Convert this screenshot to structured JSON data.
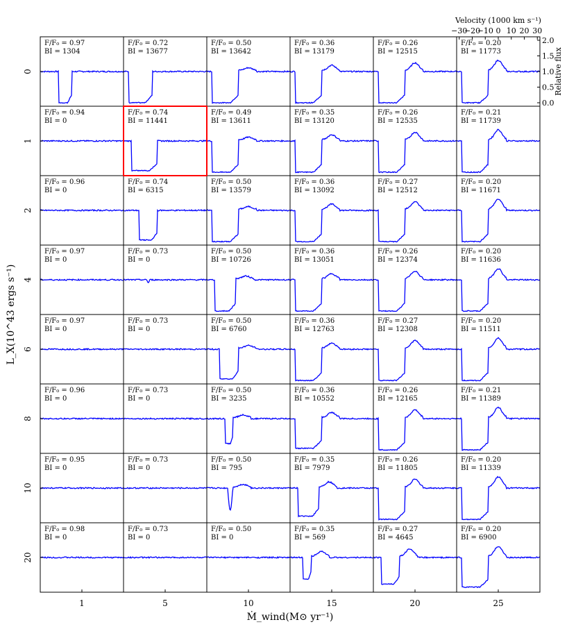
{
  "chart_data": {
    "type": "line",
    "xlabel": "Ṁ_wind(M⊙ yr⁻¹)",
    "ylabel": "L_X(10^43 ergs s⁻¹)",
    "columns": [
      "1",
      "5",
      "10",
      "15",
      "20",
      "25"
    ],
    "rows": [
      "0",
      "1",
      "2",
      "4",
      "6",
      "8",
      "10",
      "20"
    ],
    "inset_axes": {
      "top_label": "Velocity (1000 km s⁻¹)",
      "top_ticks": [
        "−30",
        "−20",
        "−10",
        "0",
        "10",
        "20",
        "30"
      ],
      "right_label": "Relative flux",
      "right_ticks": [
        "0.0",
        "0.5",
        "1.0",
        "1.5",
        "2.0"
      ]
    },
    "highlight": {
      "row": 1,
      "col": 1,
      "color": "#ff0000"
    },
    "line_color": "#0000ff",
    "flux_labels": [
      [
        "F/F₀ = 0.97",
        "F/F₀ = 0.72",
        "F/F₀ = 0.50",
        "F/F₀ = 0.36",
        "F/F₀ = 0.26",
        "F/F₀ = 0.20"
      ],
      [
        "F/F₀ = 0.94",
        "F/F₀ = 0.74",
        "F/F₀ = 0.49",
        "F/F₀ = 0.35",
        "F/F₀ = 0.26",
        "F/F₀ = 0.21"
      ],
      [
        "F/F₀ = 0.96",
        "F/F₀ = 0.74",
        "F/F₀ = 0.50",
        "F/F₀ = 0.36",
        "F/F₀ = 0.27",
        "F/F₀ = 0.20"
      ],
      [
        "F/F₀ = 0.97",
        "F/F₀ = 0.73",
        "F/F₀ = 0.50",
        "F/F₀ = 0.36",
        "F/F₀ = 0.26",
        "F/F₀ = 0.20"
      ],
      [
        "F/F₀ = 0.97",
        "F/F₀ = 0.73",
        "F/F₀ = 0.50",
        "F/F₀ = 0.36",
        "F/F₀ = 0.27",
        "F/F₀ = 0.20"
      ],
      [
        "F/F₀ = 0.96",
        "F/F₀ = 0.73",
        "F/F₀ = 0.50",
        "F/F₀ = 0.36",
        "F/F₀ = 0.26",
        "F/F₀ = 0.21"
      ],
      [
        "F/F₀ = 0.95",
        "F/F₀ = 0.73",
        "F/F₀ = 0.50",
        "F/F₀ = 0.35",
        "F/F₀ = 0.26",
        "F/F₀ = 0.20"
      ],
      [
        "F/F₀ = 0.98",
        "F/F₀ = 0.73",
        "F/F₀ = 0.50",
        "F/F₀ = 0.35",
        "F/F₀ = 0.27",
        "F/F₀ = 0.20"
      ]
    ],
    "bi_labels": [
      [
        "BI = 1304",
        "BI = 13677",
        "BI = 13642",
        "BI = 13179",
        "BI = 12515",
        "BI = 11773"
      ],
      [
        "BI = 0",
        "BI = 11441",
        "BI = 13611",
        "BI = 13120",
        "BI = 12535",
        "BI = 11739"
      ],
      [
        "BI = 0",
        "BI = 6315",
        "BI = 13579",
        "BI = 13092",
        "BI = 12512",
        "BI = 11671"
      ],
      [
        "BI = 0",
        "BI = 0",
        "BI = 10726",
        "BI = 13051",
        "BI = 12374",
        "BI = 11636"
      ],
      [
        "BI = 0",
        "BI = 0",
        "BI = 6760",
        "BI = 12763",
        "BI = 12308",
        "BI = 11511"
      ],
      [
        "BI = 0",
        "BI = 0",
        "BI = 3235",
        "BI = 10552",
        "BI = 12165",
        "BI = 11389"
      ],
      [
        "BI = 0",
        "BI = 0",
        "BI = 795",
        "BI = 7979",
        "BI = 11805",
        "BI = 11339"
      ],
      [
        "BI = 0",
        "BI = 0",
        "BI = 0",
        "BI = 569",
        "BI = 4645",
        "BI = 6900"
      ]
    ],
    "absorption_profiles": {
      "description_units": "velocity in 1000 km/s, relative flux",
      "cells": [
        [
          [
            -18,
            -8,
            0.0
          ],
          [
            -28,
            -10,
            0.0
          ],
          [
            -28,
            -8,
            0.0
          ],
          [
            -28,
            -8,
            0.0
          ],
          [
            -28,
            -8,
            0.0
          ],
          [
            -28,
            -8,
            0.0
          ]
        ],
        [
          [
            0,
            0,
            1.0
          ],
          [
            -26,
            -6,
            0.05
          ],
          [
            -28,
            -8,
            0.0
          ],
          [
            -28,
            -8,
            0.0
          ],
          [
            -28,
            -8,
            0.0
          ],
          [
            -28,
            -8,
            0.0
          ]
        ],
        [
          [
            0,
            0,
            1.0
          ],
          [
            -20,
            -6,
            0.05
          ],
          [
            -28,
            -8,
            0.0
          ],
          [
            -28,
            -8,
            0.0
          ],
          [
            -28,
            -8,
            0.0
          ],
          [
            -28,
            -8,
            0.0
          ]
        ],
        [
          [
            0,
            0,
            1.0
          ],
          [
            -14,
            -12,
            0.9
          ],
          [
            -26,
            -10,
            0.0
          ],
          [
            -28,
            -8,
            0.0
          ],
          [
            -28,
            -8,
            0.0
          ],
          [
            -28,
            -8,
            0.0
          ]
        ],
        [
          [
            0,
            0,
            1.0
          ],
          [
            0,
            0,
            1.0
          ],
          [
            -22,
            -8,
            0.05
          ],
          [
            -28,
            -8,
            0.0
          ],
          [
            -28,
            -8,
            0.0
          ],
          [
            -28,
            -8,
            0.0
          ]
        ],
        [
          [
            0,
            0,
            1.0
          ],
          [
            0,
            0,
            1.0
          ],
          [
            -18,
            -12,
            0.2
          ],
          [
            -28,
            -8,
            0.05
          ],
          [
            -28,
            -8,
            0.0
          ],
          [
            -28,
            -8,
            0.0
          ]
        ],
        [
          [
            0,
            0,
            1.0
          ],
          [
            0,
            0,
            1.0
          ],
          [
            -16,
            -12,
            0.3
          ],
          [
            -26,
            -10,
            0.1
          ],
          [
            -28,
            -8,
            0.0
          ],
          [
            -28,
            -8,
            0.0
          ]
        ],
        [
          [
            0,
            0,
            1.0
          ],
          [
            0,
            0,
            1.0
          ],
          [
            0,
            0,
            1.0
          ],
          [
            -22,
            -16,
            0.3
          ],
          [
            -26,
            -12,
            0.15
          ],
          [
            -28,
            -8,
            0.05
          ]
        ]
      ]
    }
  }
}
